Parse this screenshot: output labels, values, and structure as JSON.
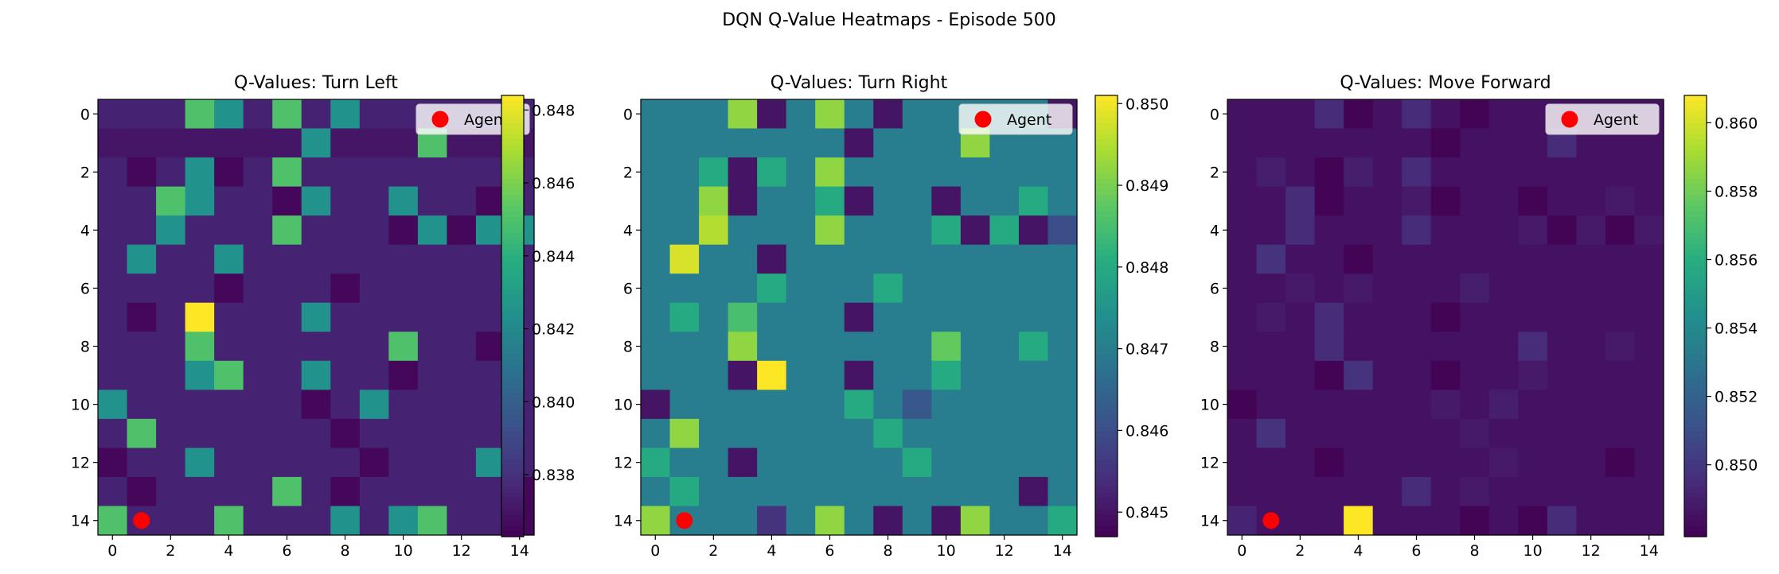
{
  "figure_title": "DQN Q-Value Heatmaps - Episode 500",
  "colormap": "viridis",
  "agent_marker_color": "#ff0000",
  "chart_data": [
    {
      "type": "heatmap",
      "title": "Q-Values: Turn Left",
      "grid_size": 15,
      "x_ticks": [
        0,
        2,
        4,
        6,
        8,
        10,
        12,
        14
      ],
      "y_ticks": [
        0,
        2,
        4,
        6,
        8,
        10,
        12,
        14
      ],
      "xlabel": "",
      "ylabel": "",
      "colorbar": {
        "min": 0.8363,
        "max": 0.8484,
        "ticks": [
          0.838,
          0.84,
          0.842,
          0.844,
          0.846,
          0.848
        ],
        "tick_labels": [
          "0.838",
          "0.840",
          "0.842",
          "0.844",
          "0.846",
          "0.848"
        ]
      },
      "legend": {
        "label": "Agent",
        "position": "upper right"
      },
      "agent": {
        "row": 14,
        "col": 1
      },
      "values": [
        [
          0.8375,
          0.8375,
          0.8375,
          0.845,
          0.8425,
          0.8375,
          0.845,
          0.8375,
          0.8425,
          0.8375,
          0.8375,
          0.8375,
          0.8375,
          0.8375,
          0.8375
        ],
        [
          0.837,
          0.837,
          0.837,
          0.837,
          0.837,
          0.837,
          0.837,
          0.8425,
          0.837,
          0.837,
          0.837,
          0.845,
          0.837,
          0.837,
          0.837
        ],
        [
          0.8375,
          0.8365,
          0.8375,
          0.8425,
          0.8365,
          0.8375,
          0.845,
          0.8375,
          0.8375,
          0.8375,
          0.8375,
          0.8375,
          0.8375,
          0.8375,
          0.8375
        ],
        [
          0.8375,
          0.8375,
          0.845,
          0.8425,
          0.8375,
          0.8375,
          0.8365,
          0.8425,
          0.8375,
          0.8375,
          0.8425,
          0.8375,
          0.8375,
          0.8365,
          0.8375
        ],
        [
          0.8375,
          0.8375,
          0.8425,
          0.8375,
          0.8375,
          0.8375,
          0.845,
          0.8375,
          0.8375,
          0.8375,
          0.8365,
          0.8425,
          0.8365,
          0.8425,
          0.8425
        ],
        [
          0.8375,
          0.8425,
          0.8375,
          0.8375,
          0.8425,
          0.8375,
          0.8375,
          0.8375,
          0.8375,
          0.8375,
          0.8375,
          0.8375,
          0.8375,
          0.8375,
          0.8375
        ],
        [
          0.8375,
          0.8375,
          0.8375,
          0.8375,
          0.8365,
          0.8375,
          0.8375,
          0.8375,
          0.8365,
          0.8375,
          0.8375,
          0.8375,
          0.8375,
          0.8375,
          0.8375
        ],
        [
          0.8375,
          0.8365,
          0.8375,
          0.8484,
          0.8375,
          0.8375,
          0.8375,
          0.8425,
          0.8375,
          0.8375,
          0.8375,
          0.8375,
          0.8375,
          0.8375,
          0.8375
        ],
        [
          0.8375,
          0.8375,
          0.8375,
          0.845,
          0.8375,
          0.8375,
          0.8375,
          0.8375,
          0.8375,
          0.8375,
          0.845,
          0.8375,
          0.8375,
          0.8365,
          0.8375
        ],
        [
          0.8375,
          0.8375,
          0.8375,
          0.8425,
          0.845,
          0.8375,
          0.8375,
          0.8425,
          0.8375,
          0.8375,
          0.8365,
          0.8375,
          0.8375,
          0.8375,
          0.8375
        ],
        [
          0.8425,
          0.8375,
          0.8375,
          0.8375,
          0.8375,
          0.8375,
          0.8375,
          0.8365,
          0.8375,
          0.8425,
          0.8375,
          0.8375,
          0.8375,
          0.8375,
          0.8375
        ],
        [
          0.8375,
          0.845,
          0.8375,
          0.8375,
          0.8375,
          0.8375,
          0.8375,
          0.8375,
          0.8365,
          0.8375,
          0.8375,
          0.8375,
          0.8375,
          0.8375,
          0.8375
        ],
        [
          0.8365,
          0.8375,
          0.8375,
          0.8425,
          0.8375,
          0.8375,
          0.8375,
          0.8375,
          0.8375,
          0.8365,
          0.8375,
          0.8375,
          0.8375,
          0.8425,
          0.8375
        ],
        [
          0.8375,
          0.8365,
          0.8375,
          0.8375,
          0.8375,
          0.8375,
          0.845,
          0.8375,
          0.8365,
          0.8375,
          0.8375,
          0.8375,
          0.8375,
          0.8375,
          0.8365
        ],
        [
          0.845,
          0.8375,
          0.8375,
          0.8375,
          0.845,
          0.8375,
          0.8375,
          0.8375,
          0.8425,
          0.8375,
          0.8425,
          0.845,
          0.8375,
          0.8375,
          0.8365
        ]
      ]
    },
    {
      "type": "heatmap",
      "title": "Q-Values: Turn Right",
      "grid_size": 15,
      "x_ticks": [
        0,
        2,
        4,
        6,
        8,
        10,
        12,
        14
      ],
      "y_ticks": [
        0,
        2,
        4,
        6,
        8,
        10,
        12,
        14
      ],
      "xlabel": "",
      "ylabel": "",
      "colorbar": {
        "min": 0.8447,
        "max": 0.8501,
        "ticks": [
          0.845,
          0.846,
          0.847,
          0.848,
          0.849,
          0.85
        ],
        "tick_labels": [
          "0.845",
          "0.846",
          "0.847",
          "0.848",
          "0.849",
          "0.850"
        ]
      },
      "legend": {
        "label": "Agent",
        "position": "upper right"
      },
      "agent": {
        "row": 14,
        "col": 1
      },
      "values": [
        [
          0.847,
          0.847,
          0.847,
          0.8492,
          0.845,
          0.847,
          0.8492,
          0.847,
          0.845,
          0.847,
          0.847,
          0.847,
          0.847,
          0.847,
          0.845
        ],
        [
          0.847,
          0.847,
          0.847,
          0.847,
          0.847,
          0.847,
          0.847,
          0.845,
          0.847,
          0.847,
          0.847,
          0.8492,
          0.847,
          0.847,
          0.847
        ],
        [
          0.847,
          0.847,
          0.848,
          0.845,
          0.848,
          0.847,
          0.8492,
          0.847,
          0.847,
          0.847,
          0.847,
          0.847,
          0.847,
          0.847,
          0.847
        ],
        [
          0.847,
          0.847,
          0.8492,
          0.845,
          0.847,
          0.847,
          0.848,
          0.845,
          0.847,
          0.847,
          0.845,
          0.847,
          0.847,
          0.848,
          0.847
        ],
        [
          0.847,
          0.847,
          0.8495,
          0.847,
          0.847,
          0.847,
          0.8492,
          0.847,
          0.847,
          0.847,
          0.848,
          0.845,
          0.848,
          0.845,
          0.846
        ],
        [
          0.847,
          0.8498,
          0.847,
          0.847,
          0.845,
          0.847,
          0.847,
          0.847,
          0.847,
          0.847,
          0.847,
          0.847,
          0.847,
          0.847,
          0.847
        ],
        [
          0.847,
          0.847,
          0.847,
          0.847,
          0.848,
          0.847,
          0.847,
          0.847,
          0.848,
          0.847,
          0.847,
          0.847,
          0.847,
          0.847,
          0.847
        ],
        [
          0.847,
          0.848,
          0.847,
          0.8485,
          0.847,
          0.847,
          0.847,
          0.845,
          0.847,
          0.847,
          0.847,
          0.847,
          0.847,
          0.847,
          0.847
        ],
        [
          0.847,
          0.847,
          0.847,
          0.8492,
          0.847,
          0.847,
          0.847,
          0.847,
          0.847,
          0.847,
          0.8488,
          0.847,
          0.847,
          0.848,
          0.847
        ],
        [
          0.847,
          0.847,
          0.847,
          0.845,
          0.8501,
          0.847,
          0.847,
          0.845,
          0.847,
          0.847,
          0.848,
          0.847,
          0.847,
          0.847,
          0.847
        ],
        [
          0.845,
          0.847,
          0.847,
          0.847,
          0.847,
          0.847,
          0.847,
          0.848,
          0.847,
          0.8462,
          0.847,
          0.847,
          0.847,
          0.847,
          0.847
        ],
        [
          0.847,
          0.8492,
          0.847,
          0.847,
          0.847,
          0.847,
          0.847,
          0.847,
          0.848,
          0.847,
          0.847,
          0.847,
          0.847,
          0.847,
          0.847
        ],
        [
          0.848,
          0.847,
          0.847,
          0.845,
          0.847,
          0.847,
          0.847,
          0.847,
          0.847,
          0.848,
          0.847,
          0.847,
          0.847,
          0.847,
          0.847
        ],
        [
          0.847,
          0.848,
          0.847,
          0.847,
          0.847,
          0.847,
          0.847,
          0.847,
          0.847,
          0.847,
          0.847,
          0.847,
          0.847,
          0.845,
          0.847
        ],
        [
          0.8492,
          0.847,
          0.847,
          0.847,
          0.8455,
          0.847,
          0.8492,
          0.847,
          0.845,
          0.847,
          0.845,
          0.8492,
          0.847,
          0.847,
          0.848
        ]
      ]
    },
    {
      "type": "heatmap",
      "title": "Q-Values: Move Forward",
      "grid_size": 15,
      "x_ticks": [
        0,
        2,
        4,
        6,
        8,
        10,
        12,
        14
      ],
      "y_ticks": [
        0,
        2,
        4,
        6,
        8,
        10,
        12,
        14
      ],
      "xlabel": "",
      "ylabel": "",
      "colorbar": {
        "min": 0.8479,
        "max": 0.8608,
        "ticks": [
          0.85,
          0.852,
          0.854,
          0.856,
          0.858,
          0.86
        ],
        "tick_labels": [
          "0.850",
          "0.852",
          "0.854",
          "0.856",
          "0.858",
          "0.860"
        ]
      },
      "legend": {
        "label": "Agent",
        "position": "upper right"
      },
      "agent": {
        "row": 14,
        "col": 1
      },
      "values": [
        [
          0.8485,
          0.8485,
          0.8485,
          0.8495,
          0.848,
          0.8485,
          0.8495,
          0.8485,
          0.848,
          0.8485,
          0.8485,
          0.8485,
          0.8485,
          0.8485,
          0.8485
        ],
        [
          0.8485,
          0.8485,
          0.8485,
          0.8485,
          0.8485,
          0.8485,
          0.8485,
          0.848,
          0.8485,
          0.8485,
          0.8485,
          0.8495,
          0.8485,
          0.8485,
          0.8485
        ],
        [
          0.8485,
          0.849,
          0.8485,
          0.848,
          0.849,
          0.8485,
          0.8495,
          0.8485,
          0.8485,
          0.8485,
          0.8485,
          0.8485,
          0.8485,
          0.8485,
          0.8485
        ],
        [
          0.8485,
          0.8485,
          0.8495,
          0.848,
          0.8485,
          0.8485,
          0.8488,
          0.848,
          0.8485,
          0.8485,
          0.848,
          0.8485,
          0.8485,
          0.8488,
          0.8485
        ],
        [
          0.8485,
          0.8485,
          0.8495,
          0.8485,
          0.8485,
          0.8485,
          0.8495,
          0.8485,
          0.8485,
          0.8485,
          0.8488,
          0.848,
          0.8488,
          0.848,
          0.8488
        ],
        [
          0.8485,
          0.8498,
          0.8485,
          0.8485,
          0.848,
          0.8485,
          0.8485,
          0.8485,
          0.8485,
          0.8485,
          0.8485,
          0.8485,
          0.8485,
          0.8485,
          0.8485
        ],
        [
          0.8485,
          0.8485,
          0.8488,
          0.8485,
          0.8488,
          0.8485,
          0.8485,
          0.8485,
          0.849,
          0.8485,
          0.8485,
          0.8485,
          0.8485,
          0.8485,
          0.8485
        ],
        [
          0.8485,
          0.8488,
          0.8485,
          0.8495,
          0.8485,
          0.8485,
          0.8485,
          0.848,
          0.8485,
          0.8485,
          0.8485,
          0.8485,
          0.8485,
          0.8485,
          0.8485
        ],
        [
          0.8485,
          0.8485,
          0.8485,
          0.8495,
          0.8485,
          0.8485,
          0.8485,
          0.8485,
          0.8485,
          0.8485,
          0.8495,
          0.8485,
          0.8485,
          0.8488,
          0.8485
        ],
        [
          0.8485,
          0.8485,
          0.8485,
          0.848,
          0.8498,
          0.8485,
          0.8485,
          0.848,
          0.8485,
          0.8485,
          0.8488,
          0.8485,
          0.8485,
          0.8485,
          0.8485
        ],
        [
          0.848,
          0.8485,
          0.8485,
          0.8485,
          0.8485,
          0.8485,
          0.8485,
          0.8488,
          0.8485,
          0.849,
          0.8485,
          0.8485,
          0.8485,
          0.8485,
          0.8485
        ],
        [
          0.8485,
          0.8498,
          0.8485,
          0.8485,
          0.8485,
          0.8485,
          0.8485,
          0.8485,
          0.8488,
          0.8485,
          0.8485,
          0.8485,
          0.8485,
          0.8485,
          0.8485
        ],
        [
          0.8485,
          0.8485,
          0.8485,
          0.848,
          0.8485,
          0.8485,
          0.8485,
          0.8485,
          0.8485,
          0.8488,
          0.8485,
          0.8485,
          0.8485,
          0.848,
          0.8485
        ],
        [
          0.8485,
          0.8485,
          0.8485,
          0.8485,
          0.8485,
          0.8485,
          0.8495,
          0.8485,
          0.8488,
          0.8485,
          0.8485,
          0.8485,
          0.8485,
          0.8485,
          0.8485
        ],
        [
          0.8492,
          0.8485,
          0.8485,
          0.8485,
          0.8608,
          0.8485,
          0.8485,
          0.8485,
          0.848,
          0.8485,
          0.848,
          0.8495,
          0.8485,
          0.8485,
          0.8485
        ]
      ]
    }
  ]
}
